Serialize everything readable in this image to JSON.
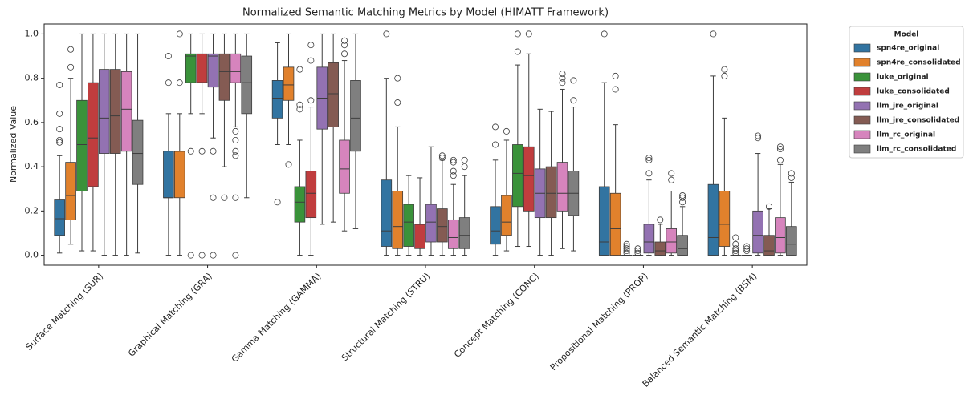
{
  "chart_data": {
    "type": "box",
    "title": "Normalized Semantic Matching Metrics by Model (HIMATT Framework)",
    "y_label": "Normalized Value",
    "legend_title": "Model",
    "legend_position": "outside-right",
    "categories": [
      "Surface Matching (SUR)",
      "Graphical Matching (GRA)",
      "Gamma Matching (GAMMA)",
      "Structural Matching (STRU)",
      "Concept Matching (CONC)",
      "Propositional Matching (PROP)",
      "Balanced Semantic Matching (BSM)"
    ],
    "ylim": [
      -0.045,
      1.045
    ],
    "yticks": [
      {
        "value": 0,
        "label": "0.0"
      },
      0.2,
      0.4,
      0.6,
      0.8,
      {
        "value": 1,
        "label": "1.0"
      }
    ],
    "series": [
      {
        "name": "spn4re_original",
        "color": "#3274a1",
        "values": [
          {
            "whislo": 0.01,
            "q1": 0.09,
            "med": 0.165,
            "q3": 0.25,
            "whishi": 0.45,
            "fliers": [
              0.51,
              0.52,
              0.57,
              0.64,
              0.77
            ]
          },
          {
            "whislo": 0,
            "q1": 0.26,
            "med": 0.26,
            "q3": 0.47,
            "whishi": 0.64,
            "fliers": [
              0.78,
              0.9
            ]
          },
          {
            "whislo": 0.5,
            "q1": 0.62,
            "med": 0.71,
            "q3": 0.79,
            "whishi": 0.96,
            "fliers": [
              0.24
            ]
          },
          {
            "whislo": 0,
            "q1": 0.04,
            "med": 0.11,
            "q3": 0.34,
            "whishi": 0.8,
            "fliers": [
              1
            ]
          },
          {
            "whislo": 0,
            "q1": 0.05,
            "med": 0.11,
            "q3": 0.22,
            "whishi": 0.43,
            "fliers": [
              0.5,
              0.58
            ]
          },
          {
            "whislo": 0,
            "q1": 0,
            "med": 0.06,
            "q3": 0.31,
            "whishi": 0.78,
            "fliers": [
              1
            ]
          },
          {
            "whislo": 0,
            "q1": 0,
            "med": 0.08,
            "q3": 0.32,
            "whishi": 0.81,
            "fliers": [
              1
            ]
          }
        ]
      },
      {
        "name": "spn4re_consolidated",
        "color": "#e1812c",
        "values": [
          {
            "whislo": 0.05,
            "q1": 0.16,
            "med": 0.27,
            "q3": 0.42,
            "whishi": 0.8,
            "fliers": [
              0.85,
              0.93
            ]
          },
          {
            "whislo": 0,
            "q1": 0.26,
            "med": 0.47,
            "q3": 0.47,
            "whishi": 0.64,
            "fliers": [
              0.78,
              1
            ]
          },
          {
            "whislo": 0.5,
            "q1": 0.7,
            "med": 0.77,
            "q3": 0.85,
            "whishi": 1,
            "fliers": [
              0.41
            ]
          },
          {
            "whislo": 0,
            "q1": 0.03,
            "med": 0.13,
            "q3": 0.29,
            "whishi": 0.58,
            "fliers": [
              0.69,
              0.8
            ]
          },
          {
            "whislo": 0.02,
            "q1": 0.09,
            "med": 0.15,
            "q3": 0.27,
            "whishi": 0.52,
            "fliers": [
              0.56
            ]
          },
          {
            "whislo": 0,
            "q1": 0,
            "med": 0.12,
            "q3": 0.28,
            "whishi": 0.59,
            "fliers": [
              0.75,
              0.81
            ]
          },
          {
            "whislo": 0,
            "q1": 0.04,
            "med": 0.14,
            "q3": 0.29,
            "whishi": 0.62,
            "fliers": [
              0.81,
              0.84
            ]
          }
        ]
      },
      {
        "name": "luke_original",
        "color": "#3a923a",
        "values": [
          {
            "whislo": 0.02,
            "q1": 0.29,
            "med": 0.5,
            "q3": 0.7,
            "whishi": 1,
            "fliers": []
          },
          {
            "whislo": 0.64,
            "q1": 0.78,
            "med": 0.9,
            "q3": 0.91,
            "whishi": 1,
            "fliers": [
              0.47,
              0
            ]
          },
          {
            "whislo": 0,
            "q1": 0.15,
            "med": 0.24,
            "q3": 0.31,
            "whishi": 0.52,
            "fliers": [
              0.66,
              0.68,
              0.84
            ]
          },
          {
            "whislo": 0,
            "q1": 0.04,
            "med": 0.15,
            "q3": 0.23,
            "whishi": 0.36,
            "fliers": []
          },
          {
            "whislo": 0.04,
            "q1": 0.22,
            "med": 0.37,
            "q3": 0.5,
            "whishi": 0.86,
            "fliers": [
              0.92,
              1
            ]
          },
          {
            "whislo": 0,
            "q1": 0,
            "med": 0,
            "q3": 0,
            "whishi": 0,
            "fliers": [
              0.01,
              0.02,
              0.03,
              0.04,
              0.05
            ]
          },
          {
            "whislo": 0,
            "q1": 0,
            "med": 0,
            "q3": 0,
            "whishi": 0,
            "fliers": [
              0.01,
              0.02,
              0.03,
              0.05,
              0.08
            ]
          }
        ]
      },
      {
        "name": "luke_consolidated",
        "color": "#c03d3e",
        "values": [
          {
            "whislo": 0.02,
            "q1": 0.31,
            "med": 0.53,
            "q3": 0.78,
            "whishi": 1,
            "fliers": []
          },
          {
            "whislo": 0.64,
            "q1": 0.78,
            "med": 0.78,
            "q3": 0.91,
            "whishi": 1,
            "fliers": [
              0.47,
              0
            ]
          },
          {
            "whislo": 0,
            "q1": 0.17,
            "med": 0.28,
            "q3": 0.38,
            "whishi": 0.67,
            "fliers": [
              0.7,
              0.88,
              0.95
            ]
          },
          {
            "whislo": 0,
            "q1": 0.03,
            "med": 0.14,
            "q3": 0.14,
            "whishi": 0.35,
            "fliers": []
          },
          {
            "whislo": 0.04,
            "q1": 0.2,
            "med": 0.36,
            "q3": 0.49,
            "whishi": 0.91,
            "fliers": [
              1
            ]
          },
          {
            "whislo": 0,
            "q1": 0,
            "med": 0,
            "q3": 0,
            "whishi": 0,
            "fliers": [
              0.01,
              0.02,
              0.03
            ]
          },
          {
            "whislo": 0,
            "q1": 0,
            "med": 0,
            "q3": 0,
            "whishi": 0,
            "fliers": [
              0.02,
              0.03,
              0.04
            ]
          }
        ]
      },
      {
        "name": "llm_jre_original",
        "color": "#9372b2",
        "values": [
          {
            "whislo": 0,
            "q1": 0.46,
            "med": 0.62,
            "q3": 0.84,
            "whishi": 1,
            "fliers": []
          },
          {
            "whislo": 0.53,
            "q1": 0.76,
            "med": 0.9,
            "q3": 0.91,
            "whishi": 1,
            "fliers": [
              0.47,
              0.26,
              0
            ]
          },
          {
            "whislo": 0.14,
            "q1": 0.57,
            "med": 0.71,
            "q3": 0.85,
            "whishi": 1,
            "fliers": []
          },
          {
            "whislo": 0,
            "q1": 0.06,
            "med": 0.15,
            "q3": 0.23,
            "whishi": 0.49,
            "fliers": []
          },
          {
            "whislo": 0,
            "q1": 0.17,
            "med": 0.28,
            "q3": 0.39,
            "whishi": 0.66,
            "fliers": []
          },
          {
            "whislo": 0,
            "q1": 0.01,
            "med": 0.06,
            "q3": 0.14,
            "whishi": 0.34,
            "fliers": [
              0.37,
              0.43,
              0.44
            ]
          },
          {
            "whislo": 0,
            "q1": 0.01,
            "med": 0.09,
            "q3": 0.2,
            "whishi": 0.46,
            "fliers": [
              0.53,
              0.54
            ]
          }
        ]
      },
      {
        "name": "llm_jre_consolidated",
        "color": "#845b53",
        "values": [
          {
            "whislo": 0,
            "q1": 0.46,
            "med": 0.63,
            "q3": 0.84,
            "whishi": 1,
            "fliers": []
          },
          {
            "whislo": 0.4,
            "q1": 0.7,
            "med": 0.83,
            "q3": 0.91,
            "whishi": 1,
            "fliers": [
              0.26
            ]
          },
          {
            "whislo": 0.15,
            "q1": 0.58,
            "med": 0.73,
            "q3": 0.87,
            "whishi": 1,
            "fliers": []
          },
          {
            "whislo": 0,
            "q1": 0.06,
            "med": 0.13,
            "q3": 0.21,
            "whishi": 0.43,
            "fliers": [
              0.44,
              0.45
            ]
          },
          {
            "whislo": 0,
            "q1": 0.17,
            "med": 0.28,
            "q3": 0.4,
            "whishi": 0.65,
            "fliers": []
          },
          {
            "whislo": 0,
            "q1": 0,
            "med": 0.02,
            "q3": 0.06,
            "whishi": 0.14,
            "fliers": [
              0.16
            ]
          },
          {
            "whislo": 0,
            "q1": 0,
            "med": 0.02,
            "q3": 0.09,
            "whishi": 0.21,
            "fliers": [
              0.22
            ]
          }
        ]
      },
      {
        "name": "llm_rc_original",
        "color": "#d684bd",
        "values": [
          {
            "whislo": 0,
            "q1": 0.47,
            "med": 0.66,
            "q3": 0.83,
            "whishi": 1,
            "fliers": []
          },
          {
            "whislo": 0.58,
            "q1": 0.78,
            "med": 0.83,
            "q3": 0.91,
            "whishi": 1,
            "fliers": [
              0.56,
              0.52,
              0.47,
              0.45,
              0.26,
              0
            ]
          },
          {
            "whislo": 0.11,
            "q1": 0.28,
            "med": 0.39,
            "q3": 0.52,
            "whishi": 0.88,
            "fliers": [
              0.91,
              0.95,
              0.97
            ]
          },
          {
            "whislo": 0,
            "q1": 0.03,
            "med": 0.08,
            "q3": 0.16,
            "whishi": 0.32,
            "fliers": [
              0.36,
              0.38,
              0.42,
              0.43
            ]
          },
          {
            "whislo": 0.03,
            "q1": 0.2,
            "med": 0.28,
            "q3": 0.42,
            "whishi": 0.75,
            "fliers": [
              0.78,
              0.8,
              0.82
            ]
          },
          {
            "whislo": 0,
            "q1": 0.01,
            "med": 0.06,
            "q3": 0.12,
            "whishi": 0.29,
            "fliers": [
              0.34,
              0.37
            ]
          },
          {
            "whislo": 0,
            "q1": 0.01,
            "med": 0.08,
            "q3": 0.17,
            "whishi": 0.41,
            "fliers": [
              0.43,
              0.48,
              0.49
            ]
          }
        ]
      },
      {
        "name": "llm_rc_consolidated",
        "color": "#7f7f7f",
        "values": [
          {
            "whislo": 0.01,
            "q1": 0.32,
            "med": 0.46,
            "q3": 0.61,
            "whishi": 1,
            "fliers": []
          },
          {
            "whislo": 0.26,
            "q1": 0.64,
            "med": 0.78,
            "q3": 0.9,
            "whishi": 1,
            "fliers": []
          },
          {
            "whislo": 0.12,
            "q1": 0.47,
            "med": 0.62,
            "q3": 0.79,
            "whishi": 1,
            "fliers": []
          },
          {
            "whislo": 0,
            "q1": 0.03,
            "med": 0.09,
            "q3": 0.17,
            "whishi": 0.36,
            "fliers": [
              0.4,
              0.43
            ]
          },
          {
            "whislo": 0.02,
            "q1": 0.18,
            "med": 0.28,
            "q3": 0.38,
            "whishi": 0.67,
            "fliers": [
              0.7,
              0.79
            ]
          },
          {
            "whislo": 0,
            "q1": 0,
            "med": 0.03,
            "q3": 0.09,
            "whishi": 0.22,
            "fliers": [
              0.24,
              0.26,
              0.27
            ]
          },
          {
            "whislo": 0,
            "q1": 0,
            "med": 0.05,
            "q3": 0.13,
            "whishi": 0.33,
            "fliers": [
              0.35,
              0.37
            ]
          }
        ]
      }
    ]
  }
}
